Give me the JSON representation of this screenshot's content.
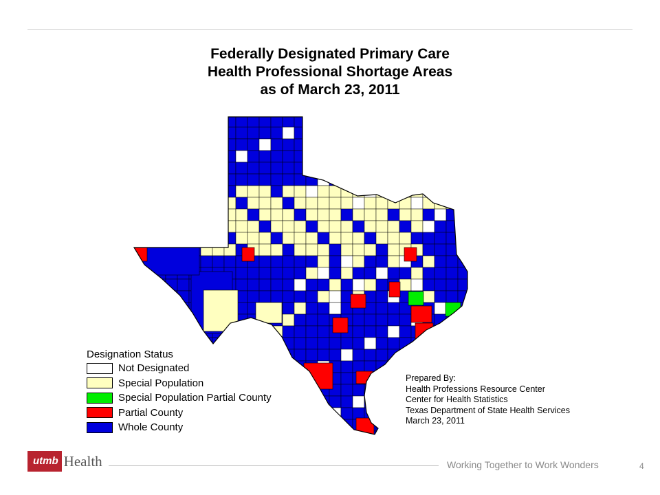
{
  "slide": {
    "title_lines": [
      "Federally Designated Primary Care",
      "Health Professional Shortage Areas",
      "as of March 23, 2011"
    ],
    "page_number": "4"
  },
  "legend": {
    "title": "Designation Status",
    "items": [
      {
        "label": "Not Designated",
        "color": "#ffffff"
      },
      {
        "label": "Special Population",
        "color": "#ffffc0"
      },
      {
        "label": "Special Population Partial County",
        "color": "#00ee00"
      },
      {
        "label": "Partial County",
        "color": "#ff0000"
      },
      {
        "label": "Whole County",
        "color": "#0000dd"
      }
    ]
  },
  "prepared": {
    "lines": [
      "Prepared By:",
      "Health Professions Resource Center",
      "Center for Health Statistics",
      "Texas Department of State Health Services",
      "March 23, 2011"
    ]
  },
  "footer": {
    "logo_utmb": "utmb",
    "logo_health": "Health",
    "tagline": "Working Together to Work Wonders"
  },
  "colors": {
    "footer_logo_red": "#b8232f",
    "map_outline": "#000000"
  }
}
